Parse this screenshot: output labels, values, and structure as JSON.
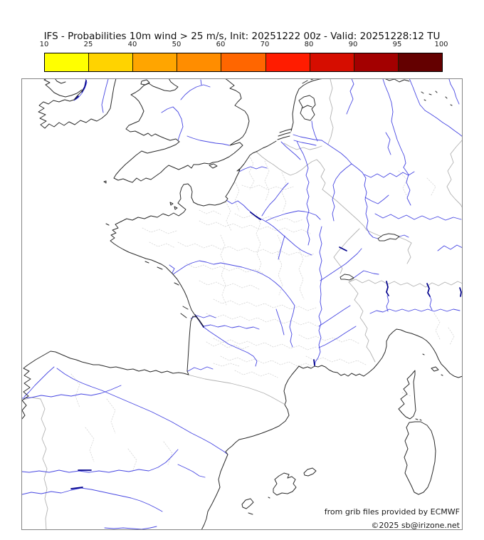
{
  "header": {
    "title": "IFS - Probabilities 10m wind > 25 m/s, Init: 20251222 00z - Valid: 20251228:12 TU"
  },
  "colorbar": {
    "tick_labels": [
      "10",
      "25",
      "40",
      "50",
      "60",
      "70",
      "80",
      "90",
      "95",
      "100"
    ],
    "segment_colors": [
      "#ffff00",
      "#ffd300",
      "#ffa500",
      "#ff8d00",
      "#ff6600",
      "#ff1c00",
      "#d60d00",
      "#a30000",
      "#640000"
    ]
  },
  "map": {
    "attribution_line1": "from grib files provided by ECMWF",
    "attribution_line2": "©2025 sb@irizone.net",
    "coastline_color": "#2b2b2b",
    "river_color": "#4747e2",
    "deep_water_color": "#00008b",
    "lake_outline_color": "#333333",
    "country_border_color": "#b2b2b2",
    "department_border_color": "#d6d6d6"
  }
}
